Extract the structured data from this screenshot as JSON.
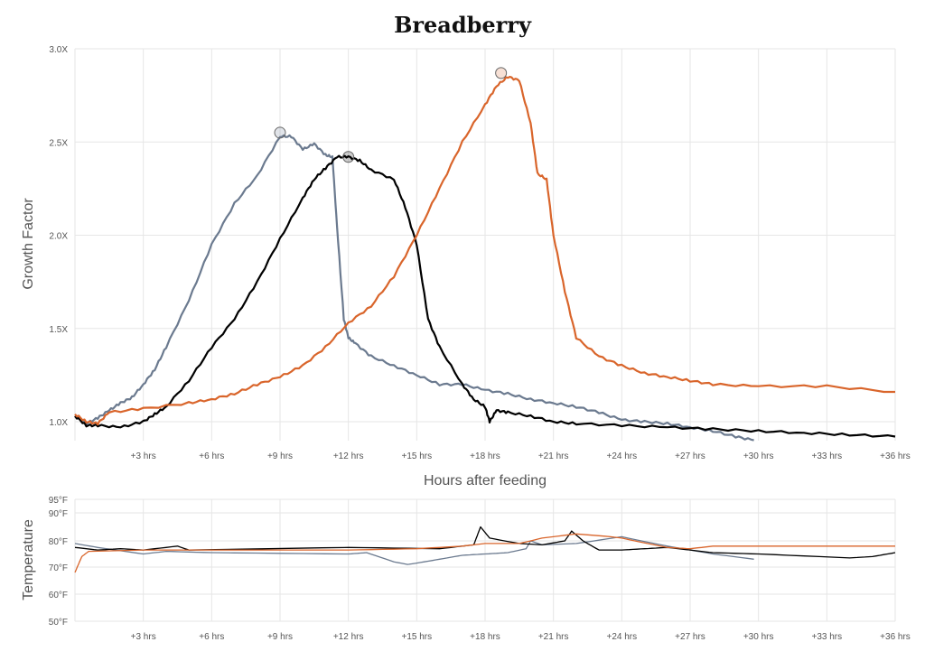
{
  "chart_data": [
    {
      "type": "line",
      "title": "Breadberry",
      "xlabel": "Hours after feeding",
      "ylabel": "Growth Factor",
      "xlim": [
        0,
        36
      ],
      "ylim": [
        0.9,
        3.0
      ],
      "grid": true,
      "x_ticks": [
        3,
        6,
        9,
        12,
        15,
        18,
        21,
        24,
        27,
        30,
        33,
        36
      ],
      "x_tick_labels": [
        "+3 hrs",
        "+6 hrs",
        "+9 hrs",
        "+12 hrs",
        "+15 hrs",
        "+18 hrs",
        "+21 hrs",
        "+24 hrs",
        "+27 hrs",
        "+30 hrs",
        "+33 hrs",
        "+36 hrs"
      ],
      "y_ticks": [
        1.0,
        1.5,
        2.0,
        2.5,
        3.0
      ],
      "y_tick_labels": [
        "1.0X",
        "1.5X",
        "2.0X",
        "2.5X",
        "3.0X"
      ],
      "series": [
        {
          "color": "#6b7a8f",
          "x": [
            0,
            0.5,
            1,
            1.5,
            2,
            2.5,
            3,
            3.5,
            4,
            5,
            6,
            7,
            8,
            9,
            9.5,
            10,
            10.5,
            11,
            11.3,
            11.5,
            11.8,
            12,
            12.3,
            13,
            14,
            15,
            16,
            17,
            18,
            19,
            20,
            21,
            22,
            23,
            24,
            25,
            26,
            27,
            28,
            29,
            29.8
          ],
          "y": [
            1.03,
            0.99,
            1.02,
            1.06,
            1.1,
            1.13,
            1.2,
            1.28,
            1.4,
            1.65,
            1.95,
            2.17,
            2.32,
            2.53,
            2.53,
            2.46,
            2.49,
            2.43,
            2.42,
            2.05,
            1.55,
            1.45,
            1.42,
            1.35,
            1.3,
            1.25,
            1.2,
            1.2,
            1.17,
            1.15,
            1.12,
            1.1,
            1.08,
            1.05,
            1.01,
            1.0,
            0.99,
            0.97,
            0.95,
            0.92,
            0.9
          ],
          "peak": [
            9,
            2.55
          ]
        },
        {
          "color": "#000000",
          "x": [
            0,
            0.5,
            1,
            2,
            3,
            3.5,
            4,
            5,
            6,
            7,
            8,
            9,
            10,
            10.5,
            11,
            11.5,
            12,
            12.5,
            13,
            14,
            14.5,
            15,
            15.5,
            16,
            17,
            17.5,
            18,
            18.2,
            18.5,
            19,
            20,
            21,
            22,
            24,
            26,
            28,
            30,
            32,
            34,
            36
          ],
          "y": [
            1.03,
            0.98,
            0.98,
            0.97,
            1.0,
            1.04,
            1.08,
            1.22,
            1.4,
            1.55,
            1.75,
            1.98,
            2.2,
            2.3,
            2.36,
            2.42,
            2.42,
            2.4,
            2.35,
            2.3,
            2.15,
            1.95,
            1.55,
            1.4,
            1.2,
            1.12,
            1.08,
            1.0,
            1.06,
            1.05,
            1.03,
            1.0,
            0.99,
            0.98,
            0.97,
            0.96,
            0.95,
            0.94,
            0.93,
            0.92
          ],
          "peak": [
            12,
            2.42
          ]
        },
        {
          "color": "#d9652b",
          "x": [
            0,
            0.5,
            1,
            1.5,
            3,
            5,
            6,
            7,
            8,
            9,
            10,
            11,
            12,
            13,
            14,
            15,
            16,
            17,
            18,
            18.5,
            19,
            19.5,
            20,
            20.3,
            20.7,
            21,
            21.5,
            22,
            23,
            24,
            25,
            26,
            27,
            28,
            30,
            33,
            36
          ],
          "y": [
            1.04,
            1.0,
            0.99,
            1.05,
            1.07,
            1.1,
            1.12,
            1.15,
            1.2,
            1.24,
            1.3,
            1.4,
            1.53,
            1.62,
            1.78,
            2.0,
            2.25,
            2.5,
            2.7,
            2.8,
            2.85,
            2.83,
            2.6,
            2.33,
            2.3,
            2.0,
            1.7,
            1.45,
            1.35,
            1.3,
            1.26,
            1.24,
            1.22,
            1.2,
            1.19,
            1.19,
            1.16
          ],
          "peak": [
            18.7,
            2.87
          ]
        }
      ]
    },
    {
      "type": "line",
      "ylabel": "Temperature",
      "xlim": [
        0,
        36
      ],
      "ylim": [
        50,
        95
      ],
      "grid": true,
      "x_ticks": [
        3,
        6,
        9,
        12,
        15,
        18,
        21,
        24,
        27,
        30,
        33,
        36
      ],
      "x_tick_labels": [
        "+3 hrs",
        "+6 hrs",
        "+9 hrs",
        "+12 hrs",
        "+15 hrs",
        "+18 hrs",
        "+21 hrs",
        "+24 hrs",
        "+27 hrs",
        "+30 hrs",
        "+33 hrs",
        "+36 hrs"
      ],
      "y_ticks": [
        50,
        60,
        70,
        80,
        90,
        95
      ],
      "y_tick_labels": [
        "50°F",
        "60°F",
        "70°F",
        "80°F",
        "90°F",
        "95°F"
      ],
      "series": [
        {
          "color": "#6b7a8f",
          "x": [
            0,
            1,
            3,
            4,
            6,
            12,
            12.8,
            14,
            14.6,
            15,
            16,
            17,
            18,
            19,
            19.8,
            20,
            20.5,
            22,
            24,
            26,
            28,
            29.8
          ],
          "y": [
            79,
            77.5,
            75,
            76,
            75.5,
            75,
            75.5,
            72,
            71,
            71.5,
            73,
            74.5,
            75,
            75.5,
            77,
            80,
            78.5,
            79,
            81.5,
            78,
            75,
            73
          ]
        },
        {
          "color": "#000000",
          "x": [
            0,
            1,
            2,
            3,
            4.5,
            5,
            12,
            16,
            17.5,
            17.8,
            18.2,
            19.5,
            20.5,
            21.5,
            21.8,
            22.3,
            23,
            24,
            25,
            26,
            27,
            28,
            30,
            34,
            35,
            36
          ],
          "y": [
            77.5,
            76.5,
            77,
            76.5,
            78,
            76.5,
            77.5,
            77,
            78.5,
            85,
            81,
            79,
            78.5,
            80,
            83.5,
            80,
            76.5,
            76.5,
            77,
            77.5,
            76.5,
            75.5,
            75,
            73.5,
            74,
            75.5
          ]
        },
        {
          "color": "#d9652b",
          "x": [
            0,
            0.3,
            0.6,
            3,
            12,
            15,
            17,
            18,
            19.5,
            20.5,
            22,
            23.5,
            24,
            26,
            27,
            28,
            30,
            36
          ],
          "y": [
            68,
            74,
            76,
            76.5,
            76.5,
            77,
            78,
            79,
            79,
            81,
            82.5,
            81.5,
            81,
            77.5,
            77,
            78,
            78,
            78
          ]
        }
      ]
    }
  ]
}
